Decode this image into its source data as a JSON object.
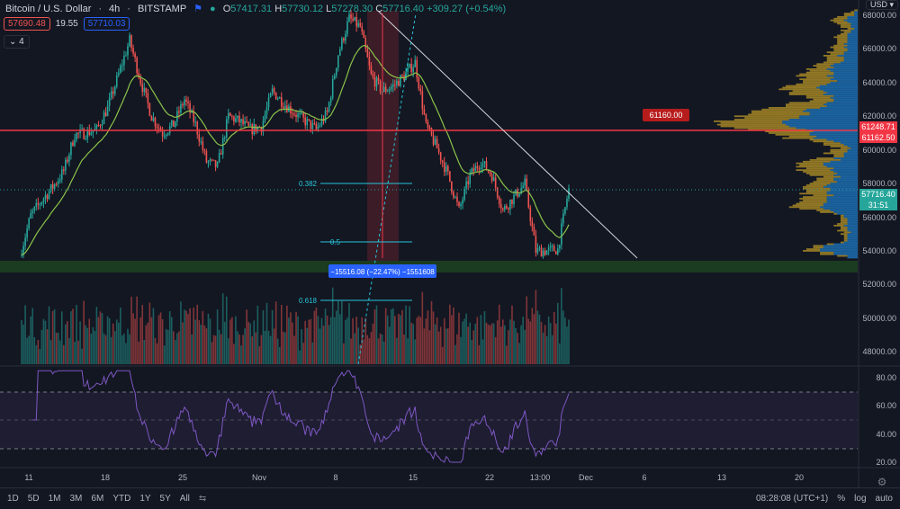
{
  "header": {
    "title": "Bitcoin / U.S. Dollar",
    "interval": "4h",
    "exchange": "BITSTAMP",
    "open": "57417.31",
    "high": "57730.12",
    "low": "57278.30",
    "close": "57716.40",
    "change": "+309.27 (+0.54%)",
    "sell_price": "57690.48",
    "spread": "19.55",
    "buy_price": "57710.03",
    "indicator_count": "4"
  },
  "currency": "USD",
  "colors": {
    "up": "#26a69a",
    "down": "#ef5350",
    "ema": "#8bc34a",
    "rsi": "#7e57c2",
    "fib": "#26c6da",
    "level": "#f23645",
    "profile_up": "#2196f3",
    "profile_down": "#c9a227"
  },
  "chart_data": {
    "type": "candlestick",
    "interval": "4h",
    "ylim": [
      47000,
      68500
    ],
    "price_ticks": [
      "68000.00",
      "66000.00",
      "64000.00",
      "62000.00",
      "60000.00",
      "58000.00",
      "56000.00",
      "54000.00",
      "52000.00",
      "50000.00",
      "48000.00"
    ],
    "rsi_ticks": [
      "80.00",
      "60.00",
      "40.00",
      "20.00"
    ],
    "x_ticks": [
      "11",
      "18",
      "25",
      "Nov",
      "8",
      "15",
      "22",
      "13:00",
      "Dec",
      "6",
      "13",
      "20"
    ],
    "daily_closes": [
      53700,
      56100,
      57000,
      57800,
      58750,
      60900,
      61000,
      61200,
      62500,
      64500,
      66500,
      64100,
      62000,
      61000,
      61500,
      63000,
      61500,
      59300,
      59000,
      62000,
      61700,
      61200,
      61400,
      63500,
      62800,
      62200,
      61700,
      61200,
      62200,
      65700,
      67800,
      67300,
      64400,
      63500,
      63800,
      64400,
      65200,
      61400,
      60100,
      58500,
      56400,
      58500,
      59300,
      58500,
      56400,
      57200,
      58000,
      54000,
      54000,
      54100,
      57716.4
    ],
    "horizontal_level": "61160.00",
    "price_tags": {
      "level_high": "61248.71",
      "level_low": "61162.50",
      "last": "57716.40",
      "countdown": "31:51"
    },
    "fib_levels": [
      {
        "label": "0.382"
      },
      {
        "label": "0.5"
      },
      {
        "label": "0.618"
      }
    ],
    "measure_label": "−15516.08 (−22.47%) −1551608",
    "support_zone": [
      52800,
      53400
    ]
  },
  "bottom_bar": {
    "ranges": [
      "1D",
      "5D",
      "1M",
      "3M",
      "6M",
      "YTD",
      "1Y",
      "5Y",
      "All"
    ],
    "time": "08:28:08 (UTC+1)",
    "percent": "%",
    "log": "log",
    "auto": "auto"
  }
}
